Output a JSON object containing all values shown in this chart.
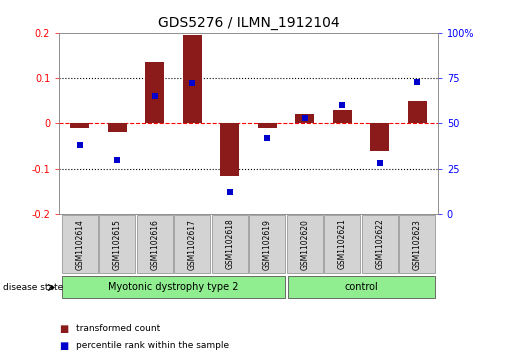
{
  "title": "GDS5276 / ILMN_1912104",
  "samples": [
    "GSM1102614",
    "GSM1102615",
    "GSM1102616",
    "GSM1102617",
    "GSM1102618",
    "GSM1102619",
    "GSM1102620",
    "GSM1102621",
    "GSM1102622",
    "GSM1102623"
  ],
  "red_values": [
    -0.01,
    -0.02,
    0.135,
    0.195,
    -0.115,
    -0.01,
    0.02,
    0.03,
    -0.06,
    0.05
  ],
  "blue_values": [
    38,
    30,
    65,
    72,
    12,
    42,
    53,
    60,
    28,
    73
  ],
  "ylim_left": [
    -0.2,
    0.2
  ],
  "ylim_right": [
    0,
    100
  ],
  "yticks_left": [
    -0.2,
    -0.1,
    0.0,
    0.1,
    0.2
  ],
  "yticks_right": [
    0,
    25,
    50,
    75,
    100
  ],
  "ytick_labels_left": [
    "-0.2",
    "-0.1",
    "0",
    "0.1",
    "0.2"
  ],
  "ytick_labels_right": [
    "0",
    "25",
    "50",
    "75",
    "100%"
  ],
  "hlines": [
    0.1,
    -0.1
  ],
  "group1_label": "Myotonic dystrophy type 2",
  "group2_label": "control",
  "group1_indices": [
    0,
    1,
    2,
    3,
    4,
    5
  ],
  "group2_indices": [
    6,
    7,
    8,
    9
  ],
  "disease_state_label": "disease state",
  "legend_red": "transformed count",
  "legend_blue": "percentile rank within the sample",
  "bar_color": "#8B1A1A",
  "dot_color": "#0000CD",
  "group1_color": "#90EE90",
  "group2_color": "#90EE90",
  "bar_width": 0.5,
  "dot_size": 22,
  "title_fontsize": 10,
  "tick_fontsize": 7,
  "label_fontsize": 7,
  "sample_fontsize": 5.5
}
